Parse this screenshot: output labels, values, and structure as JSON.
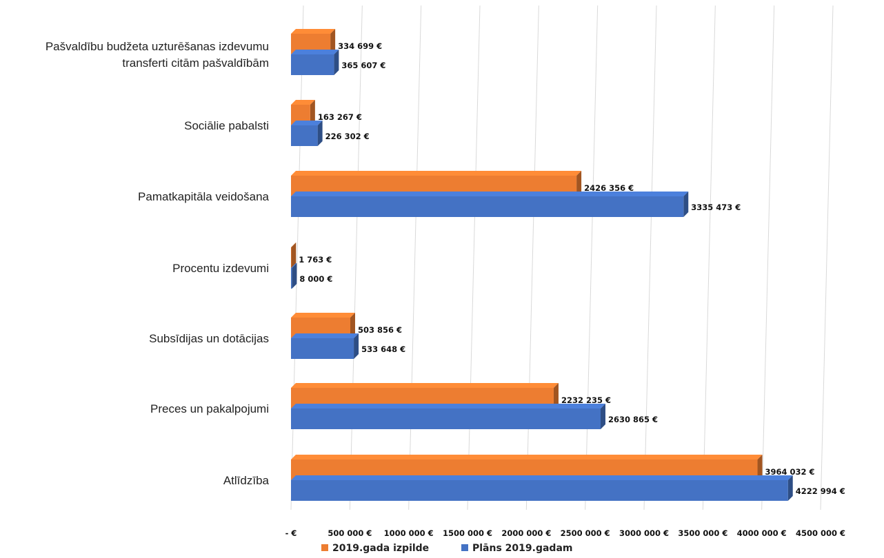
{
  "chart_data": {
    "type": "bar",
    "orientation": "horizontal",
    "style": "3d-clustered",
    "categories": [
      [
        "Pašvaldību budžeta uzturēšanas izdevumu",
        "transferti citām pašvaldībām"
      ],
      [
        "Sociālie pabalsti"
      ],
      [
        "Pamatkapitāla veidošana"
      ],
      [
        "Procentu izdevumi"
      ],
      [
        "Subsīdijas un dotācijas"
      ],
      [
        "Preces un pakalpojumi"
      ],
      [
        "Atlīdzība"
      ]
    ],
    "series": [
      {
        "name": "2019.gada izpilde",
        "color": "#ED7D31",
        "values": [
          334699,
          163267,
          2426356,
          1763,
          503856,
          2232235,
          3964032
        ],
        "labels": [
          "334 699 €",
          "163 267 €",
          "2426 356 €",
          "1 763 €",
          "503 856 €",
          "2232 235 €",
          "3964 032 €"
        ]
      },
      {
        "name": "Plāns 2019.gadam",
        "color": "#4472C4",
        "values": [
          365607,
          226302,
          3335473,
          8000,
          533648,
          2630865,
          4222994
        ],
        "labels": [
          "365 607 €",
          "226 302 €",
          "3335 473 €",
          "8 000 €",
          "533 648 €",
          "2630 865 €",
          "4222 994 €"
        ]
      }
    ],
    "x_ticks": [
      0,
      500000,
      1000000,
      1500000,
      2000000,
      2500000,
      3000000,
      3500000,
      4000000,
      4500000
    ],
    "x_tick_labels": [
      "-   €",
      "500 000 €",
      "1000 000 €",
      "1500 000 €",
      "2000 000 €",
      "2500 000 €",
      "3000 000 €",
      "3500 000 €",
      "4000 000 €",
      "4500 000 €"
    ],
    "xlim": [
      0,
      4500000
    ],
    "grid": true,
    "legend_position": "bottom"
  }
}
